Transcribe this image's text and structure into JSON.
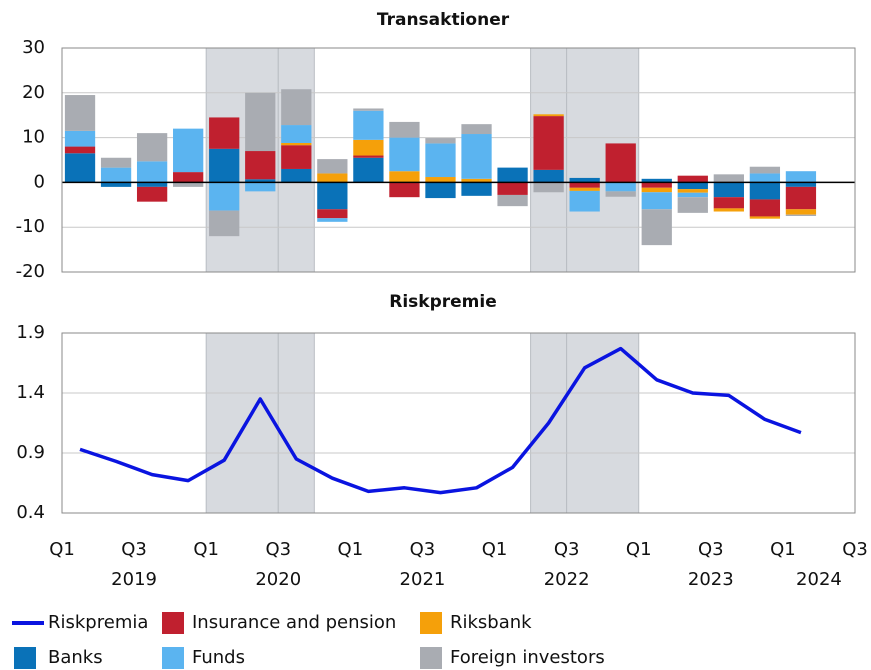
{
  "chart_data": [
    {
      "type": "bar",
      "stacked": true,
      "title": "Transaktioner",
      "x": [
        0.5,
        1.5,
        2.5,
        3.5,
        4.5,
        5.5,
        6.5,
        7.5,
        8.5,
        9.5,
        10.5,
        11.5,
        12.5,
        13.5,
        14.5,
        15.5,
        16.5,
        17.5,
        18.5,
        19.5,
        20.5
      ],
      "xlim": [
        0,
        22
      ],
      "ylim": [
        -20,
        30
      ],
      "yticks": [
        -20,
        -10,
        0,
        10,
        20,
        30
      ],
      "grid": true,
      "shaded": [
        [
          4,
          6
        ],
        [
          6,
          7
        ],
        [
          13,
          14
        ],
        [
          14,
          16
        ]
      ],
      "series": [
        {
          "name": "Banks",
          "color": "#0a72b8",
          "values": [
            6.5,
            -1,
            -1,
            0,
            7.5,
            0.7,
            3,
            -6,
            5.5,
            0,
            -3.5,
            -3,
            3.3,
            2.8,
            1,
            0,
            0.8,
            -1.5,
            -3.3,
            -3.8,
            -1
          ]
        },
        {
          "name": "Insurance and pension",
          "color": "#c0202f",
          "values": [
            1.5,
            0,
            -3.3,
            2.3,
            7,
            6.3,
            5.3,
            -2,
            0.5,
            -3.3,
            0,
            0,
            -2.8,
            12,
            -1.2,
            8.7,
            -1.2,
            1.5,
            -2.5,
            -3.8,
            -5
          ]
        },
        {
          "name": "Riksbank",
          "color": "#f5a00a",
          "values": [
            0,
            0,
            0,
            0,
            0,
            0,
            0.5,
            2,
            3.5,
            2.5,
            1.2,
            0.8,
            0,
            0.4,
            -0.7,
            0,
            -1,
            -0.8,
            -0.7,
            -0.5,
            -1.2
          ]
        },
        {
          "name": "Funds",
          "color": "#5bb4f0",
          "values": [
            3.5,
            3.3,
            4.7,
            9.7,
            -6.3,
            -2,
            4,
            -0.8,
            6.5,
            7.5,
            7.5,
            10,
            0,
            0,
            -4.6,
            -2,
            -3.8,
            -1,
            0,
            2,
            2.5
          ]
        },
        {
          "name": "Foreign investors",
          "color": "#a9acb2",
          "values": [
            8,
            2.2,
            6.3,
            -1,
            -5.7,
            13,
            8,
            3.2,
            0.5,
            3.5,
            1.2,
            2.2,
            -2.5,
            -2.2,
            0,
            -1.2,
            -8,
            -3.5,
            1.8,
            1.5,
            -0.3
          ]
        }
      ]
    },
    {
      "type": "line",
      "title": "Riskpremie",
      "x": [
        0.5,
        1.5,
        2.5,
        3.5,
        4.5,
        5.5,
        6.5,
        7.5,
        8.5,
        9.5,
        10.5,
        11.5,
        12.5,
        13.5,
        14.5,
        15.5,
        16.5,
        17.5,
        18.5,
        19.5,
        20.5
      ],
      "xlim": [
        0,
        22
      ],
      "ylim": [
        0.4,
        1.9
      ],
      "yticks": [
        0.4,
        0.9,
        1.4,
        1.9
      ],
      "grid": true,
      "xticks": [
        {
          "value": 0,
          "label": "Q1"
        },
        {
          "value": 2,
          "label": "Q3"
        },
        {
          "value": 4,
          "label": "Q1"
        },
        {
          "value": 6,
          "label": "Q3"
        },
        {
          "value": 8,
          "label": "Q1"
        },
        {
          "value": 10,
          "label": "Q3"
        },
        {
          "value": 12,
          "label": "Q1"
        },
        {
          "value": 14,
          "label": "Q3"
        },
        {
          "value": 16,
          "label": "Q1"
        },
        {
          "value": 18,
          "label": "Q3"
        },
        {
          "value": 20,
          "label": "Q1"
        },
        {
          "value": 22,
          "label": "Q3"
        }
      ],
      "year_ticks": [
        {
          "value": 2,
          "label": "2019"
        },
        {
          "value": 6,
          "label": "2020"
        },
        {
          "value": 10,
          "label": "2021"
        },
        {
          "value": 14,
          "label": "2022"
        },
        {
          "value": 18,
          "label": "2023"
        },
        {
          "value": 21,
          "label": "2024"
        }
      ],
      "shaded": [
        [
          4,
          6
        ],
        [
          6,
          7
        ],
        [
          13,
          14
        ],
        [
          14,
          16
        ]
      ],
      "series": [
        {
          "name": "Riskpremia",
          "color": "#0a14e0",
          "values": [
            0.93,
            0.83,
            0.72,
            0.67,
            0.84,
            1.35,
            0.85,
            0.69,
            0.58,
            0.61,
            0.57,
            0.61,
            0.78,
            1.15,
            1.61,
            1.77,
            1.51,
            1.4,
            1.38,
            1.18,
            1.07
          ]
        }
      ]
    }
  ]
}
